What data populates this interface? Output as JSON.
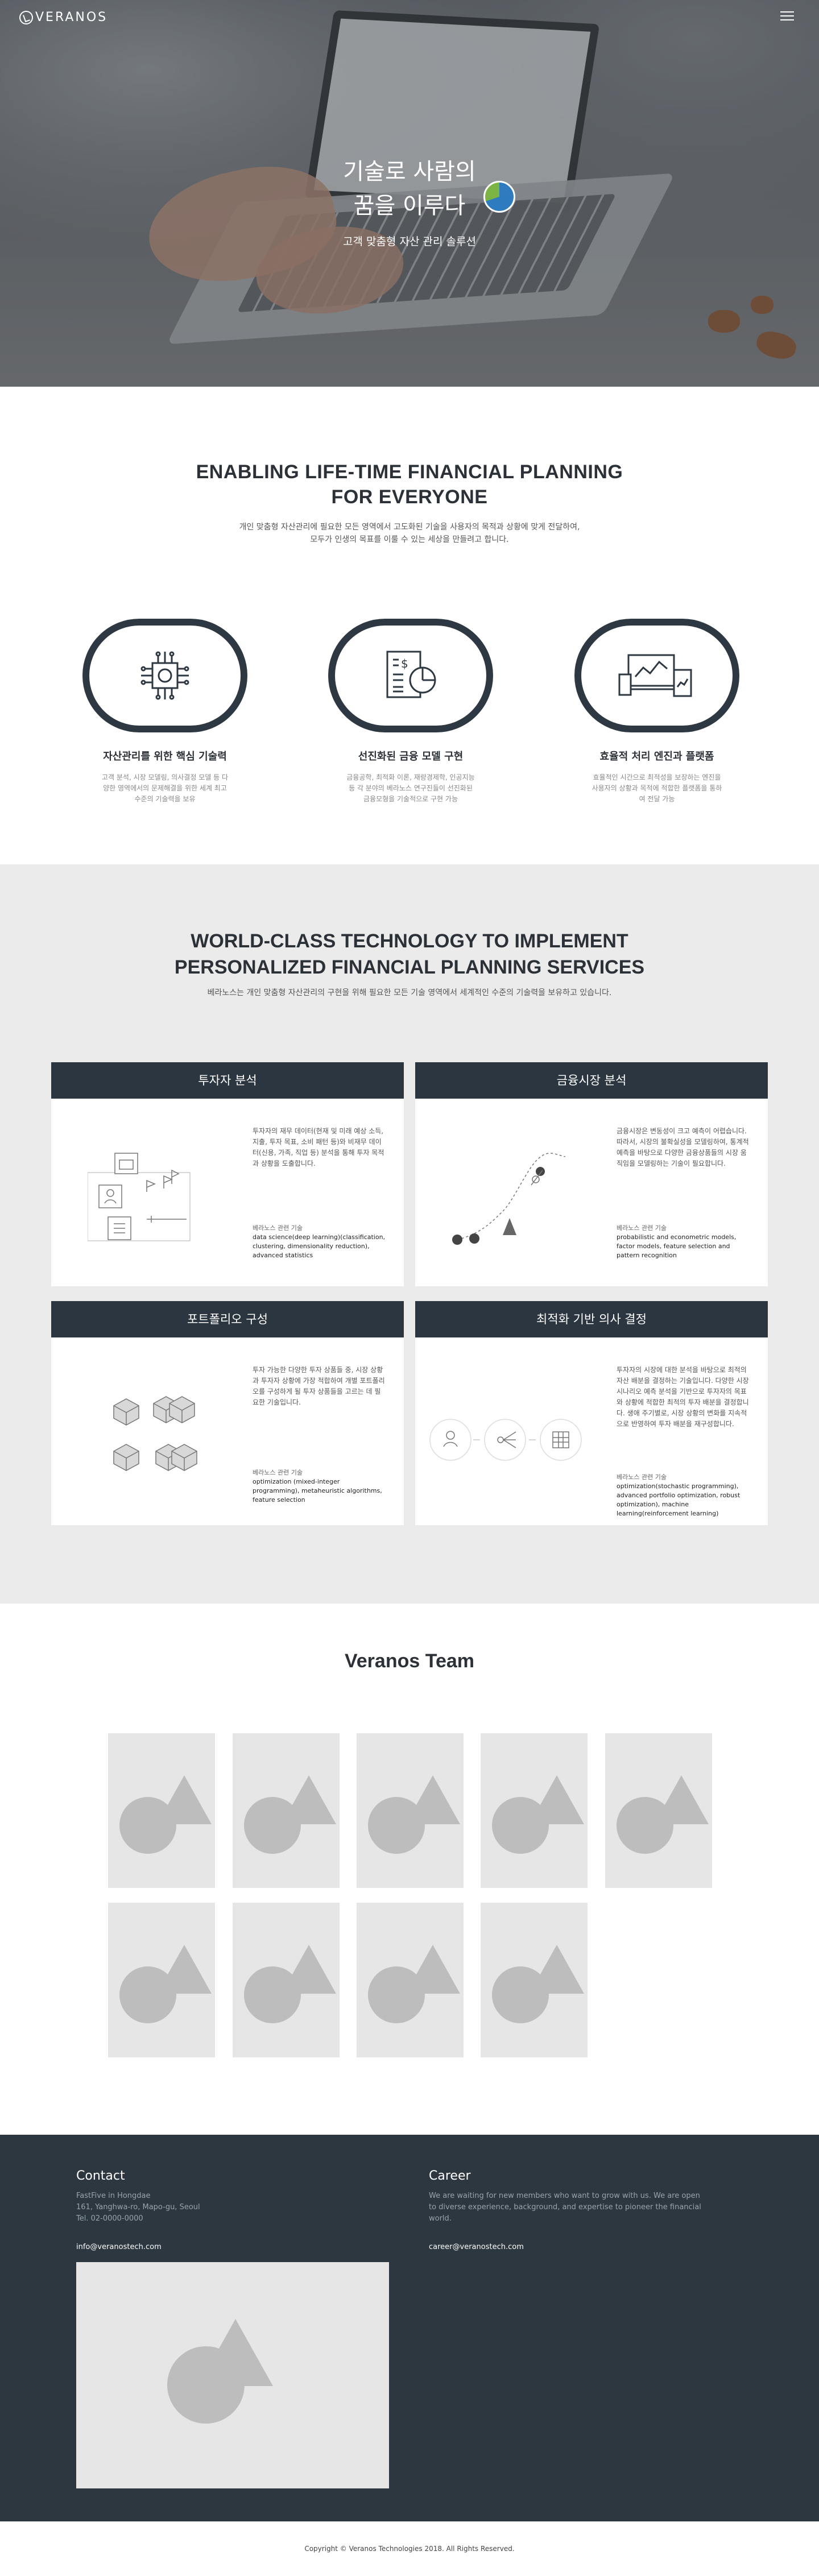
{
  "header": {
    "logo_text": "VERANOS"
  },
  "hero": {
    "title_line1": "기술로 사람의",
    "title_line2": "꿈을 이루다",
    "subtitle": "고객 맞춤형 자산 관리 솔루션"
  },
  "intro": {
    "title_line1": "ENABLING LIFE-TIME FINANCIAL PLANNING",
    "title_line2": "FOR EVERYONE",
    "desc_line1": "개인 맞춤형 자산관리에 필요한 모든 영역에서 고도화된 기술을 사용자의 목적과 상황에 맞게 전달하여,",
    "desc_line2": "모두가 인생의 목표를 이룰 수 있는 세상을 만들려고 합니다."
  },
  "features": [
    {
      "icon": "chip-icon",
      "title": "자산관리를 위한 핵심 기술력",
      "desc": "고객 분석, 시장 모델링, 의사결정 모델 등 다양한 영역에서의 문제해결을 위한 세계 최고 수준의 기술력을 보유"
    },
    {
      "icon": "report-icon",
      "title": "선진화된 금융 모델 구현",
      "desc": "금융공학, 최적화 이론, 재량경제학, 인공지능 등 각 분야의 베라노스 연구진들이 선진화된 금융모형을 기술적으로 구현 가능"
    },
    {
      "icon": "devices-icon",
      "title": "효율적 처리 엔진과 플랫폼",
      "desc": "효율적인 시간으로 최적성을 보장하는 엔진을 사용자의 상황과 목적에 적합한 플랫폼을 통하여 전달 가능"
    }
  ],
  "technology": {
    "title_line1": "WORLD-CLASS TECHNOLOGY TO IMPLEMENT",
    "title_line2": "PERSONALIZED FINANCIAL PLANNING SERVICES",
    "desc": "베라노스는 개인 맞춤형 자산관리의 구현을 위해 필요한 모든 기술 영역에서 세계적인 수준의 기술력을 보유하고 있습니다.",
    "tech_label": "베라노스 관련 기술",
    "cards": [
      {
        "title": "투자자 분석",
        "text": "투자자의 재무 데이터(현재 및 미래 예상 소득, 지출, 투자 목표, 소비 패턴 등)와 비재무 데이터(신용, 가족, 직업 등) 분석을 통해 투자 목적과 상황을 도출합니다.",
        "tech": "data science(deep learning)(classification, clustering, dimensionality reduction), advanced statistics"
      },
      {
        "title": "금융시장 분석",
        "text": "금융시장은 변동성이 크고 예측이 어렵습니다. 따라서, 시장의 불확실성을 모델링하여, 통계적 예측을 바탕으로 다양한 금융상품들의 시장 움직임을 모델링하는 기술이 필요합니다.",
        "tech": "probabilistic and econometric models, factor models, feature selection and pattern recognition"
      },
      {
        "title": "포트폴리오 구성",
        "text": "투자 가능한 다양한 투자 상품들 중, 시장 상황과 투자자 상황에 가장 적합하여 개별 포트폴리오를 구성하게 될 투자 상품들을 고르는 데 필요한 기술입니다.",
        "tech": "optimization (mixed-integer programming), metaheuristic algorithms, feature selection"
      },
      {
        "title": "최적화 기반 의사 결정",
        "text": "투자자의 시장에 대한 분석을 바탕으로 최적의 자산 배분을 결정하는 기술입니다. 다양한 시장 시나리오 예측 분석을 기반으로 투자자의 목표와 상황에 적합한 최적의 투자 배분을 결정합니다. 생애 주기별로, 시장 상황의 변화를 지속적으로 반영하여 투자 배분을 재구성합니다.",
        "tech": "optimization(stochastic programming), advanced portfolio optimization, robust optimization), machine learning(reinforcement learning)"
      }
    ]
  },
  "team": {
    "title": "Veranos Team"
  },
  "footer": {
    "contact_title": "Contact",
    "contact_addr1": "FastFive in Hongdae",
    "contact_addr2": "161, Yanghwa-ro, Mapo-gu, Seoul",
    "contact_tel": "Tel. 02-0000-0000",
    "contact_email": "info@veranostech.com",
    "career_title": "Career",
    "career_text": "We are waiting for new members who want to grow with us. We are open to diverse experience, background, and expertise to pioneer the financial world.",
    "career_email": "career@veranostech.com",
    "copyright": "Copyright © Veranos Technologies 2018. All Rights Reserved."
  },
  "colors": {
    "dark": "#2b3640",
    "footer": "#2c3740",
    "section_bg": "#ebebeb"
  }
}
